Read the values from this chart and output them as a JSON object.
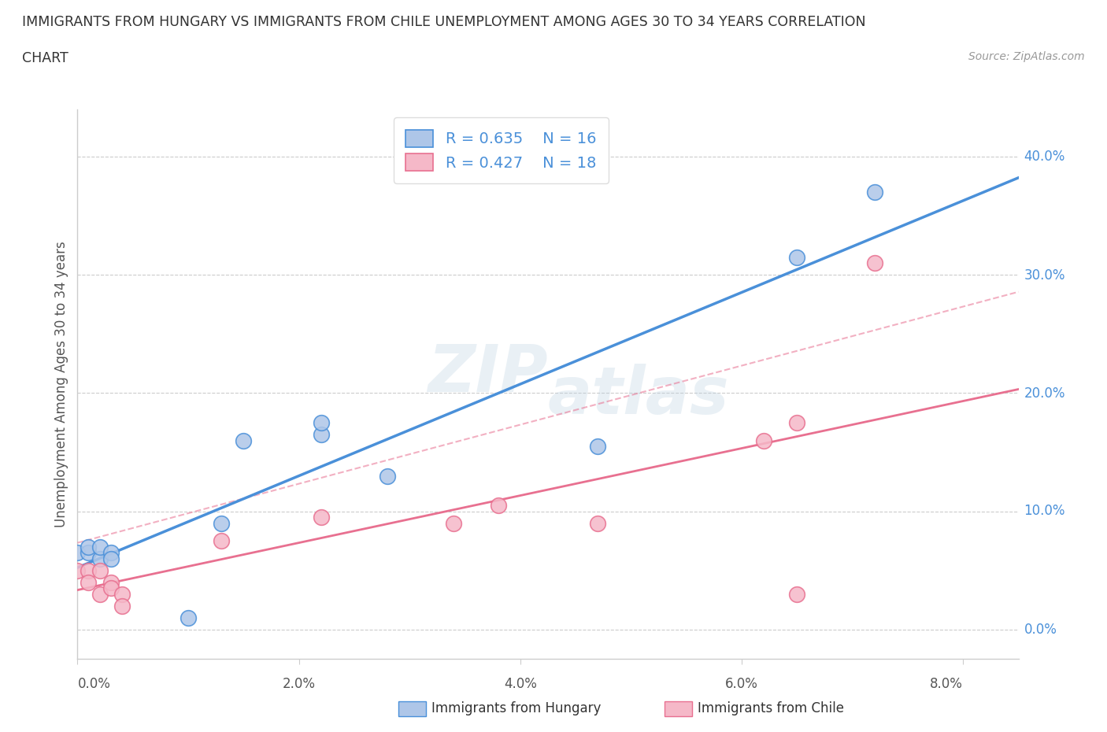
{
  "title_line1": "IMMIGRANTS FROM HUNGARY VS IMMIGRANTS FROM CHILE UNEMPLOYMENT AMONG AGES 30 TO 34 YEARS CORRELATION",
  "title_line2": "CHART",
  "source": "Source: ZipAtlas.com",
  "ylabel": "Unemployment Among Ages 30 to 34 years",
  "xlabel_ticks": [
    "0.0%",
    "2.0%",
    "4.0%",
    "6.0%",
    "8.0%"
  ],
  "ylabel_ticks": [
    "0.0%",
    "10.0%",
    "20.0%",
    "30.0%",
    "40.0%"
  ],
  "xlim": [
    0.0,
    0.085
  ],
  "ylim": [
    -0.025,
    0.44
  ],
  "hungary_x": [
    0.0,
    0.001,
    0.001,
    0.002,
    0.002,
    0.003,
    0.003,
    0.01,
    0.013,
    0.015,
    0.022,
    0.022,
    0.028,
    0.047,
    0.065,
    0.072
  ],
  "hungary_y": [
    0.065,
    0.065,
    0.07,
    0.06,
    0.07,
    0.065,
    0.06,
    0.01,
    0.09,
    0.16,
    0.165,
    0.175,
    0.13,
    0.155,
    0.315,
    0.37
  ],
  "chile_x": [
    0.0,
    0.001,
    0.001,
    0.002,
    0.002,
    0.003,
    0.003,
    0.004,
    0.004,
    0.013,
    0.022,
    0.034,
    0.038,
    0.047,
    0.062,
    0.065,
    0.065,
    0.072
  ],
  "chile_y": [
    0.05,
    0.05,
    0.04,
    0.05,
    0.03,
    0.04,
    0.035,
    0.03,
    0.02,
    0.075,
    0.095,
    0.09,
    0.105,
    0.09,
    0.16,
    0.175,
    0.03,
    0.31
  ],
  "hungary_color": "#aec6e8",
  "chile_color": "#f5b8c8",
  "hungary_line_color": "#4a90d9",
  "chile_line_color": "#e87090",
  "hungary_r": 0.635,
  "hungary_n": 16,
  "chile_r": 0.427,
  "chile_n": 18,
  "legend_label_hungary": "Immigrants from Hungary",
  "legend_label_chile": "Immigrants from Chile",
  "watermark_zip": "ZIP",
  "watermark_atlas": "atlas",
  "background_color": "#ffffff",
  "grid_color": "#cccccc",
  "tick_color_y": "#4a90d9",
  "tick_color_x": "#555555"
}
